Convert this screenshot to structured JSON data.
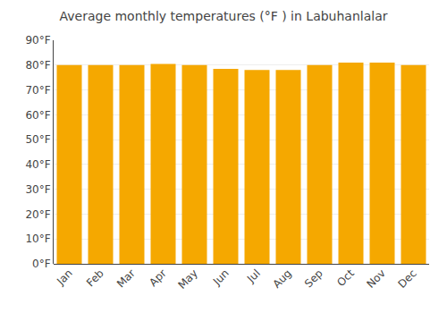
{
  "chart_data": {
    "type": "bar",
    "title": "Average monthly temperatures (°F ) in Labuhanlalar",
    "categories": [
      "Jan",
      "Feb",
      "Mar",
      "Apr",
      "May",
      "Jun",
      "Jul",
      "Aug",
      "Sep",
      "Oct",
      "Nov",
      "Dec"
    ],
    "values": [
      80.0,
      80.0,
      80.0,
      80.5,
      80.0,
      78.5,
      78.0,
      78.0,
      80.0,
      81.0,
      81.0,
      80.0
    ],
    "color": "#F5A800",
    "ylim": [
      0,
      90
    ],
    "yticks": [
      {
        "value": 0,
        "label": "0°F"
      },
      {
        "value": 10,
        "label": "10°F"
      },
      {
        "value": 20,
        "label": "20°F"
      },
      {
        "value": 30,
        "label": "30°F"
      },
      {
        "value": 40,
        "label": "40°F"
      },
      {
        "value": 50,
        "label": "50°F"
      },
      {
        "value": 60,
        "label": "60°F"
      },
      {
        "value": 70,
        "label": "70°F"
      },
      {
        "value": 80,
        "label": "80°F"
      },
      {
        "value": 90,
        "label": "90°F"
      }
    ],
    "grid": true
  }
}
